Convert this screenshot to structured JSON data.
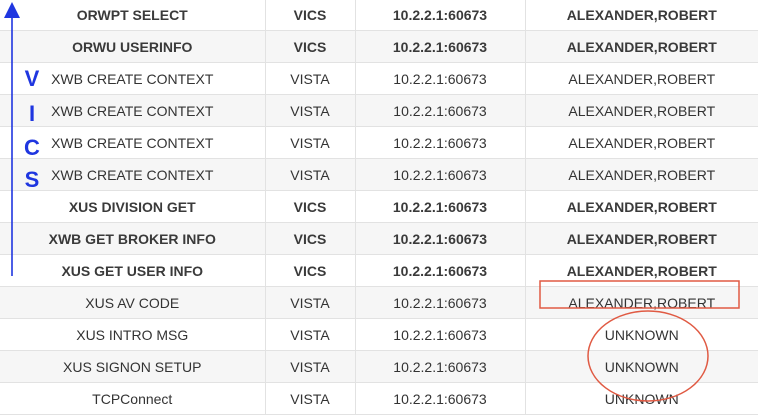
{
  "rows": [
    {
      "name": "ORWPT SELECT",
      "system": "VICS",
      "address": "10.2.2.1:60673",
      "user": "ALEXANDER,ROBERT",
      "bold": true
    },
    {
      "name": "ORWU USERINFO",
      "system": "VICS",
      "address": "10.2.2.1:60673",
      "user": "ALEXANDER,ROBERT",
      "bold": true
    },
    {
      "name": "XWB CREATE CONTEXT",
      "system": "VISTA",
      "address": "10.2.2.1:60673",
      "user": "ALEXANDER,ROBERT",
      "bold": false
    },
    {
      "name": "XWB CREATE CONTEXT",
      "system": "VISTA",
      "address": "10.2.2.1:60673",
      "user": "ALEXANDER,ROBERT",
      "bold": false
    },
    {
      "name": "XWB CREATE CONTEXT",
      "system": "VISTA",
      "address": "10.2.2.1:60673",
      "user": "ALEXANDER,ROBERT",
      "bold": false
    },
    {
      "name": "XWB CREATE CONTEXT",
      "system": "VISTA",
      "address": "10.2.2.1:60673",
      "user": "ALEXANDER,ROBERT",
      "bold": false
    },
    {
      "name": "XUS DIVISION GET",
      "system": "VICS",
      "address": "10.2.2.1:60673",
      "user": "ALEXANDER,ROBERT",
      "bold": true
    },
    {
      "name": "XWB GET BROKER INFO",
      "system": "VICS",
      "address": "10.2.2.1:60673",
      "user": "ALEXANDER,ROBERT",
      "bold": true
    },
    {
      "name": "XUS GET USER INFO",
      "system": "VICS",
      "address": "10.2.2.1:60673",
      "user": "ALEXANDER,ROBERT",
      "bold": true
    },
    {
      "name": "XUS AV CODE",
      "system": "VISTA",
      "address": "10.2.2.1:60673",
      "user": "ALEXANDER,ROBERT",
      "bold": false
    },
    {
      "name": "XUS INTRO MSG",
      "system": "VISTA",
      "address": "10.2.2.1:60673",
      "user": "UNKNOWN",
      "bold": false
    },
    {
      "name": "XUS SIGNON SETUP",
      "system": "VISTA",
      "address": "10.2.2.1:60673",
      "user": "UNKNOWN",
      "bold": false
    },
    {
      "name": "TCPConnect",
      "system": "VISTA",
      "address": "10.2.2.1:60673",
      "user": "UNKNOWN",
      "bold": false
    }
  ],
  "annotation": {
    "letters": [
      "V",
      "I",
      "C",
      "S"
    ],
    "arrow_color": "#1f36e0",
    "highlight_color": "#e05a43"
  }
}
